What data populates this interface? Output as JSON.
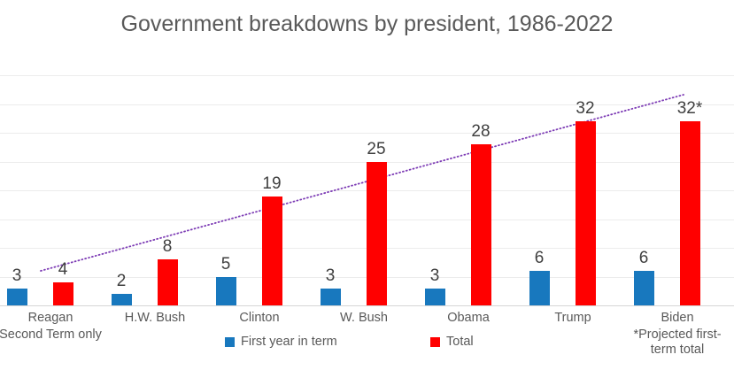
{
  "title": "Government breakdowns by president, 1986-2022",
  "colors": {
    "first_year": "#1878be",
    "total": "#ff0000",
    "trendline": "#7d3cb5",
    "title_text": "#595959",
    "value_label_text": "#3f3f3f",
    "axis_text": "#595959",
    "gridline": "#ececec",
    "axis_line": "#d6d6d6"
  },
  "chart_data": {
    "type": "bar",
    "title": "Government breakdowns by president, 1986-2022",
    "categories": [
      "Reagan",
      "H.W. Bush",
      "Clinton",
      "W. Bush",
      "Obama",
      "Trump",
      "Biden"
    ],
    "series": [
      {
        "name": "First year in term",
        "color": "#1878be",
        "values": [
          3,
          2,
          5,
          3,
          3,
          6,
          6
        ]
      },
      {
        "name": "Total",
        "color": "#ff0000",
        "values": [
          4,
          8,
          19,
          25,
          28,
          32,
          32
        ]
      }
    ],
    "value_labels": [
      [
        "3",
        "2",
        "5",
        "3",
        "3",
        "6",
        "6"
      ],
      [
        "4",
        "8",
        "19",
        "25",
        "28",
        "32",
        "32*"
      ]
    ],
    "footnotes": {
      "reagan": "Second Term only",
      "biden_line1": "*Projected first-",
      "biden_line2": "term total"
    },
    "trendline": {
      "applies_to": "Total",
      "style": "dotted",
      "color": "#7d3cb5"
    },
    "ylim": [
      0,
      40
    ],
    "gridline_interval": 5,
    "grid": true,
    "y_axis_tick_labels_visible": false,
    "legend_position": "bottom"
  }
}
